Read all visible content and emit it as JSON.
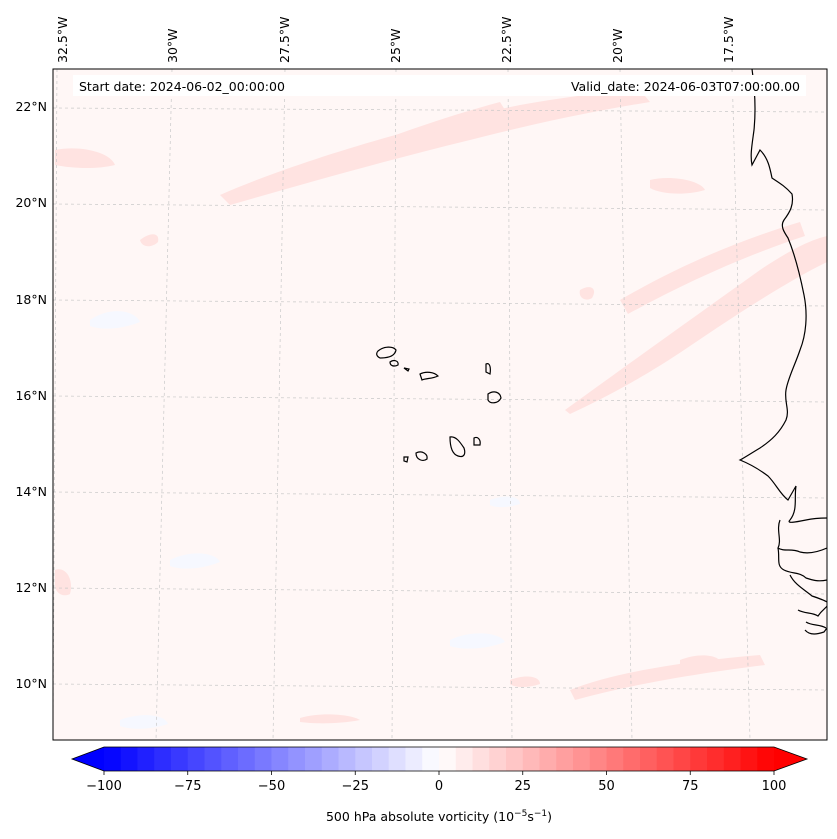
{
  "map": {
    "start_date": "Start date: 2024-06-02_00:00:00",
    "valid_date": "Valid_date: 2024-06-03T07:00:00.00",
    "lon_labels": [
      "32.5°W",
      "30°W",
      "27.5°W",
      "25°W",
      "22.5°W",
      "20°W",
      "17.5°W"
    ],
    "lat_labels": [
      "22°N",
      "20°N",
      "18°N",
      "16°N",
      "14°N",
      "12°N",
      "10°N"
    ],
    "field_colors": {
      "background": "#fff7f6",
      "weak_positive": "#ffe3e1",
      "weak_negative": "#f6f8ff",
      "coastline": "#000000",
      "gridline": "#c8c8c8"
    }
  },
  "colorbar": {
    "label": "500 hPa absolute vorticity (10",
    "label_exp": "−5",
    "label_unit": "s",
    "label_exp2": "−1",
    "label_close": ")",
    "min": -100,
    "max": 100,
    "extend": "both",
    "colormap": "bwr",
    "ticks": [
      -100,
      -75,
      -50,
      -25,
      0,
      25,
      50,
      75,
      100
    ],
    "tick_labels": [
      "−100",
      "−75",
      "−50",
      "−25",
      "0",
      "25",
      "50",
      "75",
      "100"
    ]
  }
}
